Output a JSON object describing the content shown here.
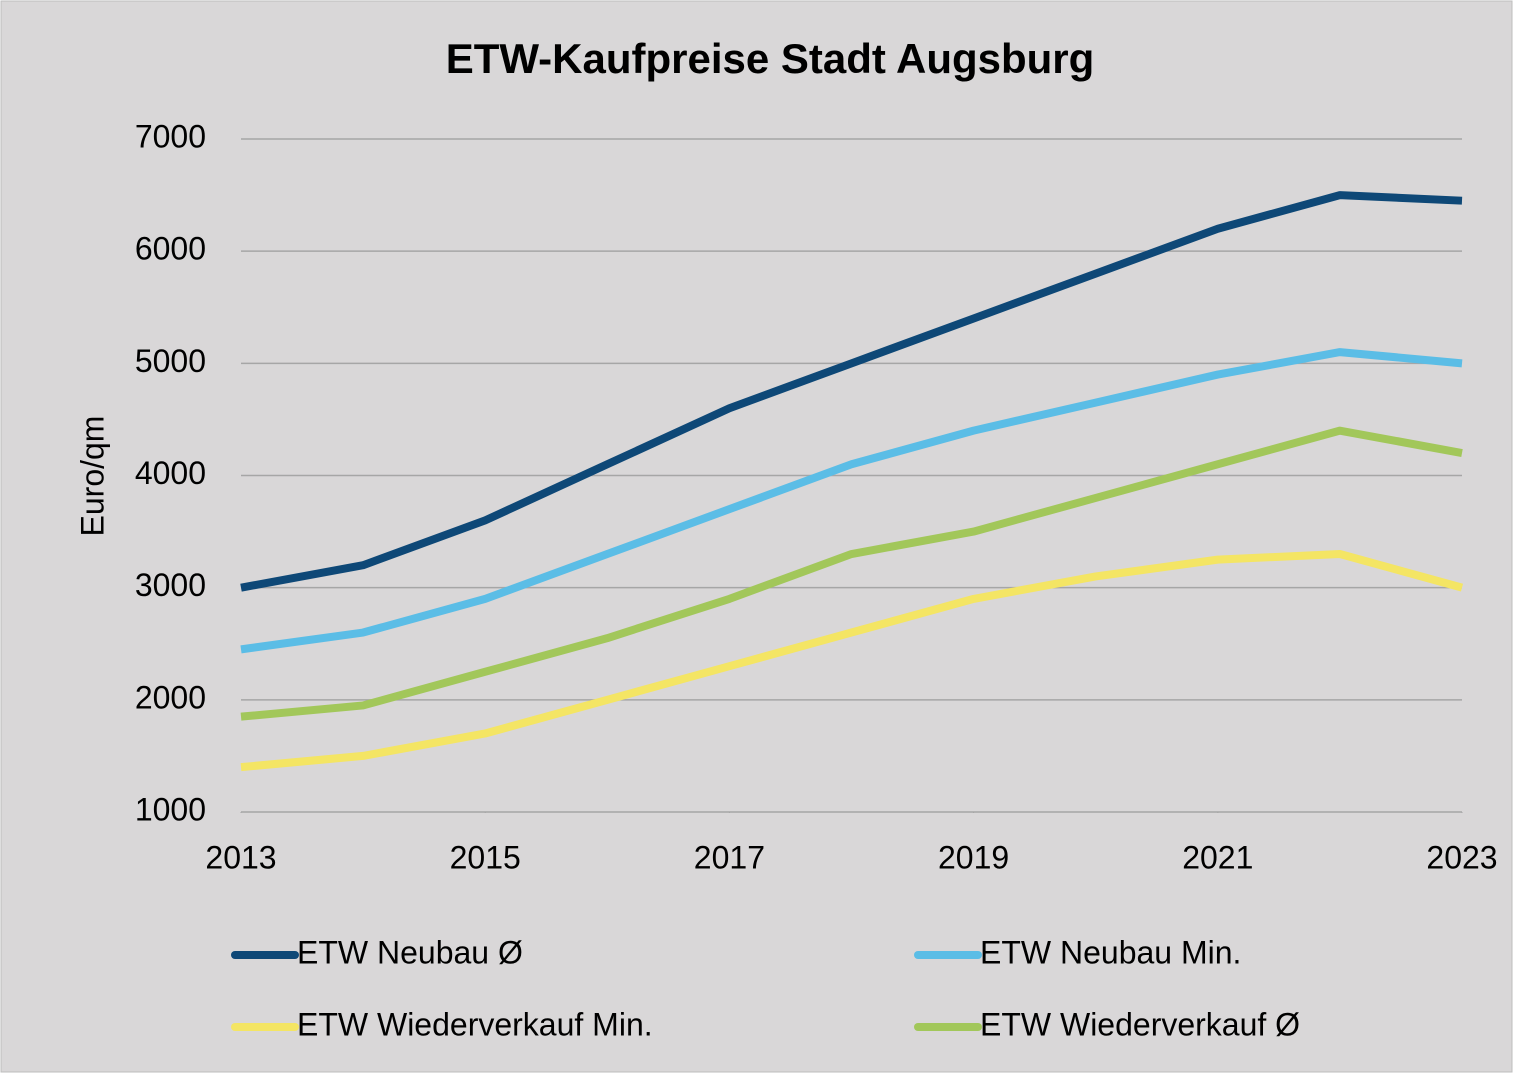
{
  "chart_data": {
    "type": "line",
    "title": "ETW-Kaufpreise Stadt Augsburg",
    "y_label": "Euro/qm",
    "x": [
      2013,
      2014,
      2015,
      2016,
      2017,
      2018,
      2019,
      2020,
      2021,
      2022,
      2023
    ],
    "xlim": [
      2013,
      2023
    ],
    "xticks": [
      2013,
      2015,
      2017,
      2019,
      2021,
      2023
    ],
    "ylim": [
      1000,
      7000
    ],
    "yticks": [
      1000,
      2000,
      3000,
      4000,
      5000,
      6000,
      7000
    ],
    "grid": true,
    "legend": "bottom",
    "series": [
      {
        "name": "ETW Neubau Ø",
        "color": "#0e4877",
        "values": [
          3000,
          3200,
          3600,
          4100,
          4600,
          5000,
          5400,
          5800,
          6200,
          6500,
          6450
        ]
      },
      {
        "name": "ETW Neubau Min.",
        "color": "#5bbde6",
        "values": [
          2450,
          2600,
          2900,
          3300,
          3700,
          4100,
          4400,
          4650,
          4900,
          5100,
          5000
        ]
      },
      {
        "name": "ETW Wiederverkauf Min.",
        "color": "#f4e564",
        "values": [
          1400,
          1500,
          1700,
          2000,
          2300,
          2600,
          2900,
          3100,
          3250,
          3300,
          3000
        ]
      },
      {
        "name": "ETW Wiederverkauf Ø",
        "color": "#a2c75a",
        "values": [
          1850,
          1950,
          2250,
          2550,
          2900,
          3300,
          3500,
          3800,
          4100,
          4400,
          4200
        ]
      }
    ]
  }
}
